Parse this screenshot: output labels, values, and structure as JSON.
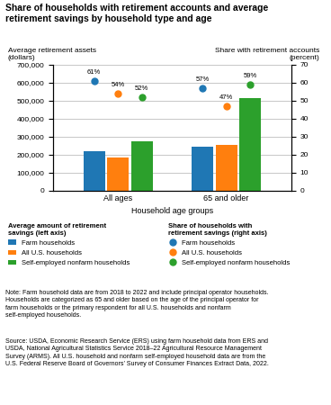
{
  "chart_data": {
    "type": "bar",
    "title": "Share of households with retirement accounts and average\nretirement savings by household type and age",
    "xlabel": "Household age groups",
    "ylabel": "Average retirement assets\n(dollars)",
    "y2label": "Share with retirement accounts\n(percent)",
    "categories": [
      "All ages",
      "65 and older"
    ],
    "series": [
      {
        "name": "Farm households",
        "type": "bar",
        "values": [
          220000,
          245000
        ]
      },
      {
        "name": "All U.S. households",
        "type": "bar",
        "values": [
          185000,
          255000
        ]
      },
      {
        "name": "Self-employed nonfarm households",
        "type": "bar",
        "values": [
          275000,
          515000
        ]
      },
      {
        "name": "Farm households",
        "type": "scatter",
        "axis": "y2",
        "data_labels": true,
        "values": [
          61,
          57
        ],
        "value_labels": [
          "61%",
          "57%"
        ]
      },
      {
        "name": "All U.S. households",
        "type": "scatter",
        "axis": "y2",
        "data_labels": true,
        "values": [
          54,
          47
        ],
        "value_labels": [
          "54%",
          "47%"
        ]
      },
      {
        "name": "Self-employed nonfarm households",
        "type": "scatter",
        "axis": "y2",
        "data_labels": true,
        "values": [
          52,
          59
        ],
        "value_labels": [
          "52%",
          "59%"
        ]
      }
    ],
    "legend_titles": {
      "y": "Average amount of retirement\nsavings (left axis)",
      "y2": "Share of households with\nretirement savings (right axis)"
    },
    "ylim": [
      0,
      700000
    ],
    "yticks": [
      0,
      {
        "value": 100000,
        "label": "100,000"
      },
      {
        "value": 200000,
        "label": "200,000"
      },
      {
        "value": 300000,
        "label": "300,000"
      },
      {
        "value": 400000,
        "label": "400,000"
      },
      {
        "value": 500000,
        "label": "500,000"
      },
      {
        "value": 600000,
        "label": "600,000"
      },
      {
        "value": 700000,
        "label": "700,000"
      }
    ],
    "y2lim": [
      0,
      70
    ],
    "y2ticks": [
      0,
      10,
      20,
      30,
      40,
      50,
      60,
      70
    ],
    "grid": true,
    "annotations": [
      "Note: Farm household data are from 2018 to 2022 and include principal operator households.\nHouseholds are categorized as 65 and older based on the age of the principal operator for\nfarm households or the primary respondent for all U.S. households and nonfarm\nself-employed households.",
      "Source: USDA, Economic Research Service (ERS) using farm household data from ERS and\nUSDA, National Agricultural Statistics Service 2018–22 Agricultural Resource Management\nSurvey (ARMS). All U.S. household and nonfarm self-employed household data are from the\nU.S. Federal Reserve Board of Governors’ Survey of Consumer Finances Extract Data, 2022."
    ]
  }
}
